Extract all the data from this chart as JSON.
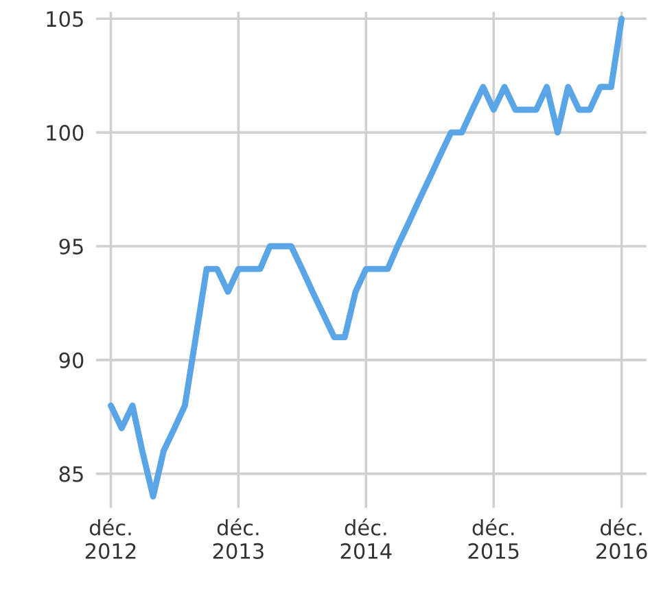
{
  "chart_data": {
    "type": "line",
    "x": [
      "2012-12",
      "2013-01",
      "2013-02",
      "2013-03",
      "2013-04",
      "2013-05",
      "2013-06",
      "2013-07",
      "2013-08",
      "2013-09",
      "2013-10",
      "2013-11",
      "2013-12",
      "2014-01",
      "2014-02",
      "2014-03",
      "2014-04",
      "2014-05",
      "2014-06",
      "2014-07",
      "2014-08",
      "2014-09",
      "2014-10",
      "2014-11",
      "2014-12",
      "2015-01",
      "2015-02",
      "2015-03",
      "2015-04",
      "2015-05",
      "2015-06",
      "2015-07",
      "2015-08",
      "2015-09",
      "2015-10",
      "2015-11",
      "2015-12",
      "2016-01",
      "2016-02",
      "2016-03",
      "2016-04",
      "2016-05",
      "2016-06",
      "2016-07",
      "2016-08",
      "2016-09",
      "2016-10",
      "2016-11",
      "2016-12"
    ],
    "series": [
      {
        "color": "#5aa5e6",
        "values": [
          88,
          87,
          88,
          86,
          84,
          86,
          87,
          88,
          91,
          94,
          94,
          93,
          94,
          94,
          94,
          95,
          95,
          95,
          94,
          93,
          92,
          91,
          91,
          93,
          94,
          94,
          94,
          95,
          96,
          97,
          98,
          99,
          100,
          100,
          101,
          102,
          101,
          102,
          101,
          101,
          101,
          102,
          100,
          102,
          101,
          101,
          102,
          102,
          105
        ]
      }
    ],
    "xlim": [
      "2012-10-20",
      "2017-02-10"
    ],
    "xticks": [
      {
        "value": "2012-12",
        "label": "déc.\n2012"
      },
      {
        "value": "2013-12",
        "label": "déc.\n2013"
      },
      {
        "value": "2014-12",
        "label": "déc.\n2014"
      },
      {
        "value": "2015-12",
        "label": "déc.\n2015"
      },
      {
        "value": "2016-12",
        "label": "déc.\n2016"
      }
    ],
    "ylim": [
      83.5,
      105.3
    ],
    "yticks": [
      85,
      90,
      95,
      100,
      105
    ],
    "grid": true,
    "marker": "none",
    "line_style": "solid"
  }
}
